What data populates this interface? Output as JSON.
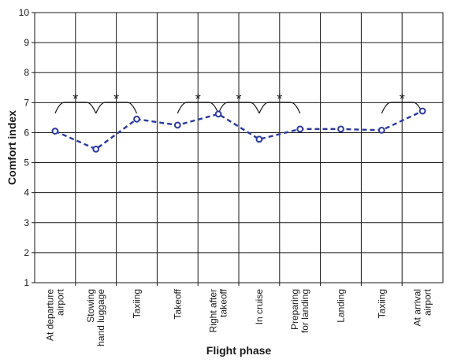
{
  "chart_data": {
    "type": "line",
    "xlabel": "Flight phase",
    "ylabel": "Comfort index",
    "ylim": [
      1,
      10
    ],
    "yticks": [
      "1",
      "2",
      "3",
      "4",
      "5",
      "6",
      "7",
      "8",
      "9",
      "10"
    ],
    "grid": "on",
    "categories": [
      [
        "At departure",
        "airport"
      ],
      [
        "Stowing",
        "hand luggage"
      ],
      [
        "Taxiing"
      ],
      [
        "Takeoff"
      ],
      [
        "Right after",
        "takeoff"
      ],
      [
        "In cruise"
      ],
      [
        "Preparing",
        "for landing"
      ],
      [
        "Landing"
      ],
      [
        "Taxiing"
      ],
      [
        "At arrival",
        "airport"
      ]
    ],
    "series": [
      {
        "values": [
          6.05,
          5.45,
          6.45,
          6.25,
          6.62,
          5.78,
          6.12,
          6.12,
          6.08,
          6.72
        ],
        "color": "#2b3a9a",
        "line_style": "dashed",
        "marker": "open-circle"
      }
    ],
    "significance": [
      {
        "from": 0,
        "to": 1,
        "label": "*"
      },
      {
        "from": 1,
        "to": 2,
        "label": "*"
      },
      {
        "from": 3,
        "to": 4,
        "label": "*"
      },
      {
        "from": 4,
        "to": 5,
        "label": "*"
      },
      {
        "from": 5,
        "to": 6,
        "label": "*"
      },
      {
        "from": 8,
        "to": 9,
        "label": "*"
      }
    ]
  }
}
